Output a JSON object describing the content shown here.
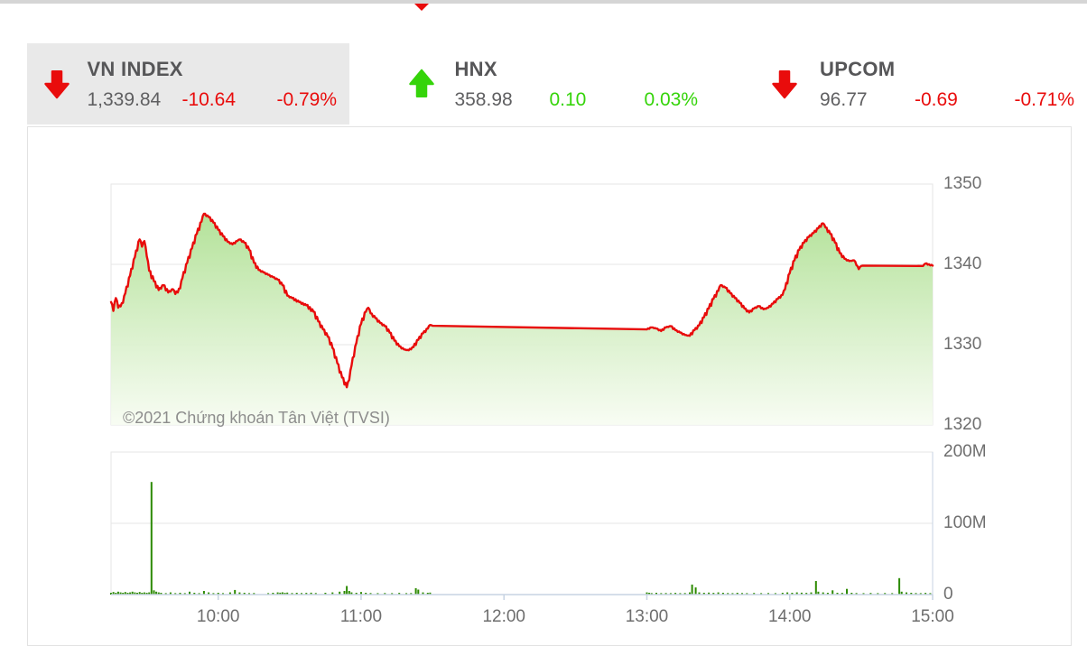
{
  "colors": {
    "down": "#e90c0c",
    "up": "#35d40a",
    "text_dark": "#565658",
    "text_value": "#5f5f61",
    "card_bg": "#e9e9e9",
    "topbar": "#d5d5d5"
  },
  "header": {
    "indices": [
      {
        "name": "VN INDEX",
        "value": "1,339.84",
        "change": "-10.64",
        "change_pct": "-0.79%",
        "direction": "down",
        "highlighted": true
      },
      {
        "name": "HNX",
        "value": "358.98",
        "change": "0.10",
        "change_pct": "0.03%",
        "direction": "up",
        "highlighted": false
      },
      {
        "name": "UPCOM",
        "value": "96.77",
        "change": "-0.69",
        "change_pct": "-0.71%",
        "direction": "down",
        "highlighted": false
      }
    ]
  },
  "chart_data": {
    "type": "area",
    "title": "",
    "watermark": "©2021 Chứng khoán Tân Việt (TVSI)",
    "x_axis": {
      "start_time": "09:15",
      "end_time": "15:00",
      "total_minutes": 345,
      "tick_labels": [
        "10:00",
        "11:00",
        "12:00",
        "13:00",
        "14:00",
        "15:00"
      ],
      "tick_minutes": [
        45,
        105,
        165,
        225,
        285,
        345
      ]
    },
    "price_pane": {
      "name": "VN-Index intraday",
      "ylim": [
        1320,
        1350
      ],
      "tick_labels": [
        "1350",
        "1340",
        "1330",
        "1320"
      ],
      "gridlines": [
        1350,
        1340,
        1330,
        1320
      ],
      "grid_on": true
    },
    "volume_pane": {
      "name": "Volume",
      "ylim_millions": [
        0,
        200
      ],
      "tick_labels": [
        "200M",
        "100M",
        "0"
      ],
      "gridlines_millions": [
        200,
        100,
        0
      ],
      "grid_on": true
    },
    "price_series": {
      "name": "VN-Index",
      "close": 1339.84,
      "points_minutes_price": [
        [
          0,
          1335.3
        ],
        [
          1,
          1334.2
        ],
        [
          2,
          1335.8
        ],
        [
          3,
          1334.6
        ],
        [
          5,
          1335.2
        ],
        [
          6,
          1336.4
        ],
        [
          8,
          1338.6
        ],
        [
          10,
          1340.9
        ],
        [
          12,
          1343.1
        ],
        [
          13,
          1342.2
        ],
        [
          14,
          1342.9
        ],
        [
          15,
          1341.0
        ],
        [
          16,
          1339.2
        ],
        [
          18,
          1337.9
        ],
        [
          20,
          1336.8
        ],
        [
          22,
          1337.4
        ],
        [
          24,
          1336.5
        ],
        [
          26,
          1336.9
        ],
        [
          27,
          1336.3
        ],
        [
          29,
          1337.0
        ],
        [
          30,
          1338.3
        ],
        [
          32,
          1340.2
        ],
        [
          34,
          1342.0
        ],
        [
          36,
          1343.8
        ],
        [
          38,
          1345.3
        ],
        [
          39,
          1346.3
        ],
        [
          41,
          1345.9
        ],
        [
          43,
          1345.2
        ],
        [
          45,
          1344.3
        ],
        [
          47,
          1343.5
        ],
        [
          49,
          1342.8
        ],
        [
          51,
          1342.5
        ],
        [
          53,
          1342.9
        ],
        [
          54,
          1343.1
        ],
        [
          56,
          1342.7
        ],
        [
          58,
          1341.8
        ],
        [
          60,
          1340.2
        ],
        [
          62,
          1339.3
        ],
        [
          64,
          1339.0
        ],
        [
          66,
          1338.7
        ],
        [
          68,
          1338.4
        ],
        [
          70,
          1338.1
        ],
        [
          72,
          1337.4
        ],
        [
          74,
          1336.1
        ],
        [
          76,
          1335.8
        ],
        [
          79,
          1335.3
        ],
        [
          82,
          1334.9
        ],
        [
          85,
          1334.1
        ],
        [
          87,
          1332.9
        ],
        [
          89,
          1331.9
        ],
        [
          91,
          1331.0
        ],
        [
          93,
          1329.6
        ],
        [
          95,
          1327.7
        ],
        [
          97,
          1325.9
        ],
        [
          99,
          1324.7
        ],
        [
          100,
          1325.6
        ],
        [
          101,
          1327.4
        ],
        [
          103,
          1330.2
        ],
        [
          105,
          1332.6
        ],
        [
          107,
          1334.1
        ],
        [
          108,
          1334.6
        ],
        [
          109,
          1333.9
        ],
        [
          111,
          1333.3
        ],
        [
          113,
          1332.7
        ],
        [
          115,
          1332.3
        ],
        [
          117,
          1331.5
        ],
        [
          119,
          1330.5
        ],
        [
          121,
          1329.8
        ],
        [
          123,
          1329.4
        ],
        [
          125,
          1329.3
        ],
        [
          127,
          1329.7
        ],
        [
          129,
          1330.6
        ],
        [
          131,
          1331.4
        ],
        [
          133,
          1332.0
        ],
        [
          134,
          1332.45
        ],
        [
          135,
          1332.35
        ],
        [
          225,
          1331.9
        ],
        [
          227,
          1332.15
        ],
        [
          229,
          1332.0
        ],
        [
          231,
          1331.7
        ],
        [
          233,
          1332.15
        ],
        [
          235,
          1332.3
        ],
        [
          237,
          1331.8
        ],
        [
          239,
          1331.5
        ],
        [
          241,
          1331.2
        ],
        [
          243,
          1331.1
        ],
        [
          245,
          1331.8
        ],
        [
          247,
          1332.4
        ],
        [
          249,
          1333.4
        ],
        [
          251,
          1334.5
        ],
        [
          253,
          1335.7
        ],
        [
          255,
          1336.7
        ],
        [
          256,
          1337.4
        ],
        [
          258,
          1337.1
        ],
        [
          260,
          1336.4
        ],
        [
          262,
          1335.8
        ],
        [
          264,
          1335.2
        ],
        [
          266,
          1334.5
        ],
        [
          268,
          1334.0
        ],
        [
          270,
          1334.5
        ],
        [
          272,
          1334.8
        ],
        [
          274,
          1334.4
        ],
        [
          276,
          1334.6
        ],
        [
          278,
          1335.1
        ],
        [
          280,
          1335.7
        ],
        [
          282,
          1336.2
        ],
        [
          283,
          1336.9
        ],
        [
          285,
          1338.9
        ],
        [
          287,
          1340.5
        ],
        [
          289,
          1341.8
        ],
        [
          291,
          1342.7
        ],
        [
          293,
          1343.4
        ],
        [
          295,
          1343.9
        ],
        [
          297,
          1344.5
        ],
        [
          299,
          1345.1
        ],
        [
          300,
          1344.6
        ],
        [
          302,
          1343.8
        ],
        [
          304,
          1342.7
        ],
        [
          306,
          1341.4
        ],
        [
          308,
          1340.7
        ],
        [
          310,
          1340.4
        ],
        [
          312,
          1340.5
        ],
        [
          313,
          1339.9
        ],
        [
          314,
          1339.4
        ],
        [
          315,
          1339.8
        ],
        [
          316,
          1339.84
        ],
        [
          341,
          1339.8
        ],
        [
          342,
          1340.1
        ],
        [
          345,
          1339.84
        ]
      ]
    },
    "volume_series": {
      "name": "Volume",
      "unit": "millions of shares",
      "bars_minutes_millions": [
        [
          0,
          2.5
        ],
        [
          1,
          3.5
        ],
        [
          2,
          2.5
        ],
        [
          3,
          4
        ],
        [
          4,
          3
        ],
        [
          5,
          2.5
        ],
        [
          6,
          3.5
        ],
        [
          7,
          2.5
        ],
        [
          8,
          3
        ],
        [
          9,
          4
        ],
        [
          10,
          3
        ],
        [
          11,
          2.5
        ],
        [
          12,
          3.5
        ],
        [
          13,
          2.5
        ],
        [
          14,
          3
        ],
        [
          15,
          2.5
        ],
        [
          16,
          3
        ],
        [
          17,
          158
        ],
        [
          18,
          6
        ],
        [
          19,
          4
        ],
        [
          20,
          3
        ],
        [
          21,
          2.5
        ],
        [
          23,
          2
        ],
        [
          25,
          3
        ],
        [
          27,
          2
        ],
        [
          29,
          2.5
        ],
        [
          31,
          2
        ],
        [
          33,
          4
        ],
        [
          35,
          2.5
        ],
        [
          37,
          2
        ],
        [
          39,
          5
        ],
        [
          41,
          3
        ],
        [
          43,
          2
        ],
        [
          45,
          2.5
        ],
        [
          47,
          2
        ],
        [
          50,
          3
        ],
        [
          52,
          6.5
        ],
        [
          54,
          3
        ],
        [
          56,
          2.5
        ],
        [
          58,
          2
        ],
        [
          60,
          2.2
        ],
        [
          66,
          2
        ],
        [
          68,
          2.5
        ],
        [
          70,
          3
        ],
        [
          71,
          2.6
        ],
        [
          72,
          3.2
        ],
        [
          73,
          2.4
        ],
        [
          74,
          2.8
        ],
        [
          76,
          2.2
        ],
        [
          78,
          2.5
        ],
        [
          80,
          2.2
        ],
        [
          82,
          2.4
        ],
        [
          84,
          2.6
        ],
        [
          86,
          2.2
        ],
        [
          90,
          2.5
        ],
        [
          93,
          3
        ],
        [
          96,
          4
        ],
        [
          98,
          5
        ],
        [
          99,
          12
        ],
        [
          100,
          5
        ],
        [
          101,
          3
        ],
        [
          103,
          2.5
        ],
        [
          105,
          3.5
        ],
        [
          107,
          2.5
        ],
        [
          109,
          2.2
        ],
        [
          112,
          2
        ],
        [
          115,
          2.2
        ],
        [
          118,
          2
        ],
        [
          121,
          2.4
        ],
        [
          124,
          2
        ],
        [
          126,
          2.2
        ],
        [
          128,
          9
        ],
        [
          129,
          7
        ],
        [
          131,
          3
        ],
        [
          133,
          2.5
        ],
        [
          134,
          2.8
        ],
        [
          225,
          3
        ],
        [
          226,
          2.5
        ],
        [
          227,
          2
        ],
        [
          229,
          2.5
        ],
        [
          231,
          2
        ],
        [
          233,
          2.2
        ],
        [
          235,
          2
        ],
        [
          237,
          2.4
        ],
        [
          239,
          2
        ],
        [
          241,
          2.2
        ],
        [
          243,
          3
        ],
        [
          244,
          14
        ],
        [
          245.5,
          10
        ],
        [
          247,
          3
        ],
        [
          249,
          2.5
        ],
        [
          251,
          2.8
        ],
        [
          253,
          2.4
        ],
        [
          255,
          3
        ],
        [
          257,
          2.5
        ],
        [
          259,
          2.2
        ],
        [
          261,
          2
        ],
        [
          263,
          2.5
        ],
        [
          265,
          2.2
        ],
        [
          267,
          2
        ],
        [
          270,
          2.3
        ],
        [
          273,
          2
        ],
        [
          276,
          2.2
        ],
        [
          279,
          2
        ],
        [
          282,
          2.5
        ],
        [
          284,
          3
        ],
        [
          286,
          2.5
        ],
        [
          288,
          3
        ],
        [
          290,
          2.6
        ],
        [
          292,
          2.4
        ],
        [
          294,
          3
        ],
        [
          296,
          19
        ],
        [
          297,
          4
        ],
        [
          299,
          3
        ],
        [
          301,
          2.5
        ],
        [
          303,
          6
        ],
        [
          305,
          2.5
        ],
        [
          307,
          2.4
        ],
        [
          309,
          8
        ],
        [
          311,
          2.5
        ],
        [
          313,
          2.2
        ],
        [
          316,
          2
        ],
        [
          319,
          2.3
        ],
        [
          322,
          2
        ],
        [
          325,
          2.2
        ],
        [
          328,
          2
        ],
        [
          331,
          23
        ],
        [
          332,
          4
        ],
        [
          334,
          3
        ],
        [
          336,
          2.5
        ],
        [
          338,
          2.2
        ],
        [
          340,
          2
        ],
        [
          342,
          2.4
        ],
        [
          344,
          2
        ]
      ]
    },
    "colors": {
      "line": "#e80b0b",
      "area_top": "#a5dc86",
      "area_bottom": "#f7fcf2",
      "bars": "#2c8a00",
      "grid": "#e6e6e6",
      "pane_border": "#e4e4e4",
      "axis_line": "#c7d3e3",
      "label": "#6e6e6e",
      "watermark": "#8d8d8d"
    }
  }
}
